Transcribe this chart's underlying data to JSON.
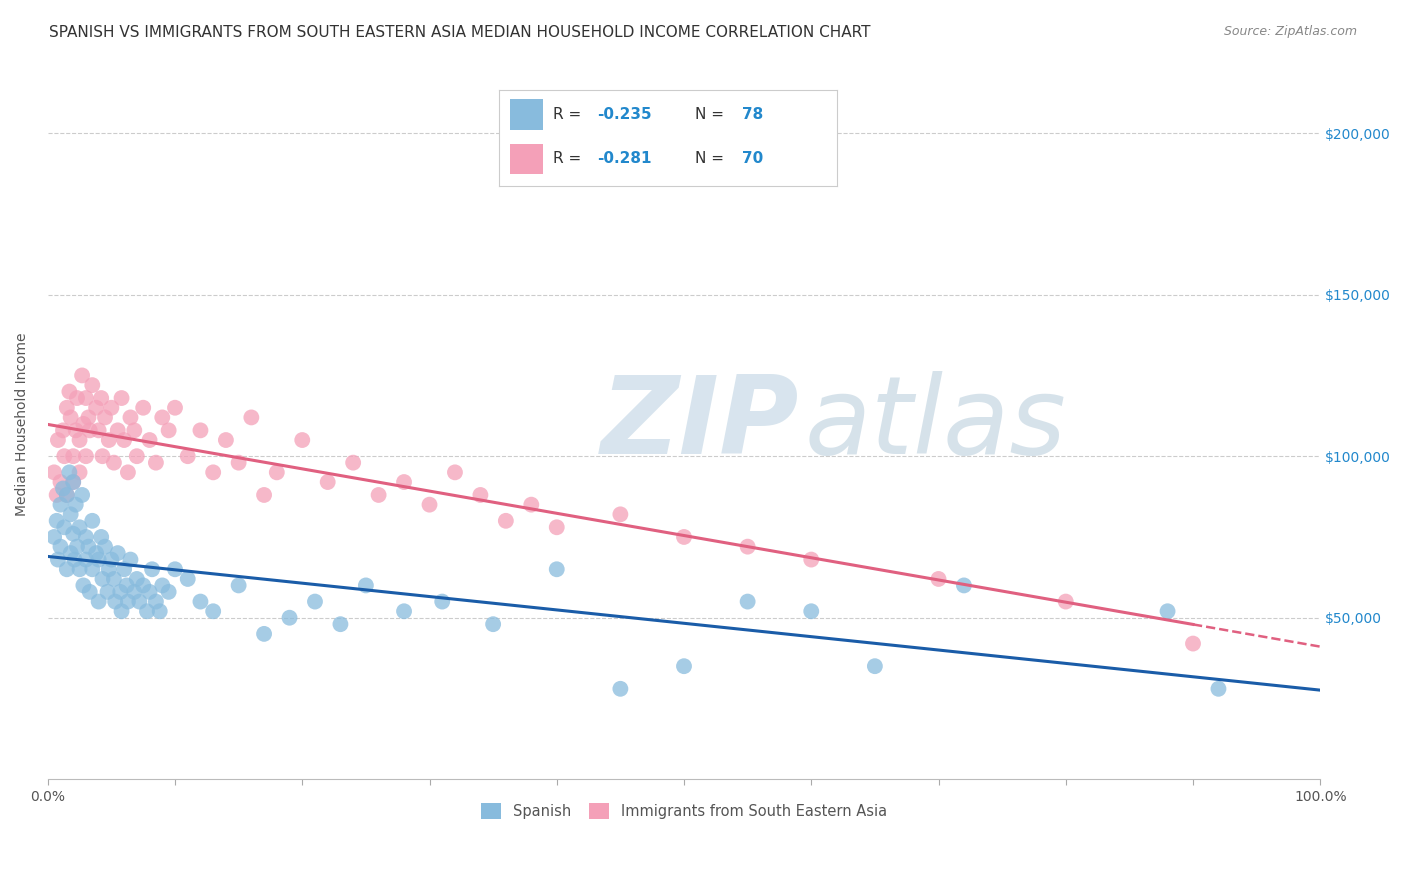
{
  "title": "SPANISH VS IMMIGRANTS FROM SOUTH EASTERN ASIA MEDIAN HOUSEHOLD INCOME CORRELATION CHART",
  "source": "Source: ZipAtlas.com",
  "ylabel": "Median Household Income",
  "xlim": [
    0,
    1.0
  ],
  "ylim": [
    0,
    220000
  ],
  "ytick_labels": [
    "$50,000",
    "$100,000",
    "$150,000",
    "$200,000"
  ],
  "ytick_values": [
    50000,
    100000,
    150000,
    200000
  ],
  "background_color": "#ffffff",
  "legend_R1": "-0.235",
  "legend_N1": "78",
  "legend_R2": "-0.281",
  "legend_N2": "70",
  "legend_label1": "Spanish",
  "legend_label2": "Immigrants from South Eastern Asia",
  "color_blue": "#88bbdd",
  "color_pink": "#f4a0b8",
  "line_color_blue": "#1a5ca8",
  "line_color_pink": "#e06080",
  "title_fontsize": 11,
  "axis_label_fontsize": 10,
  "tick_fontsize": 10,
  "blue_x": [
    0.005,
    0.007,
    0.008,
    0.01,
    0.01,
    0.012,
    0.013,
    0.015,
    0.015,
    0.017,
    0.018,
    0.018,
    0.02,
    0.02,
    0.021,
    0.022,
    0.023,
    0.025,
    0.025,
    0.027,
    0.028,
    0.03,
    0.03,
    0.032,
    0.033,
    0.035,
    0.035,
    0.038,
    0.04,
    0.04,
    0.042,
    0.043,
    0.045,
    0.047,
    0.048,
    0.05,
    0.052,
    0.053,
    0.055,
    0.057,
    0.058,
    0.06,
    0.062,
    0.063,
    0.065,
    0.068,
    0.07,
    0.072,
    0.075,
    0.078,
    0.08,
    0.082,
    0.085,
    0.088,
    0.09,
    0.095,
    0.1,
    0.11,
    0.12,
    0.13,
    0.15,
    0.17,
    0.19,
    0.21,
    0.23,
    0.25,
    0.28,
    0.31,
    0.35,
    0.4,
    0.45,
    0.5,
    0.55,
    0.6,
    0.65,
    0.72,
    0.88,
    0.92
  ],
  "blue_y": [
    75000,
    80000,
    68000,
    85000,
    72000,
    90000,
    78000,
    88000,
    65000,
    95000,
    82000,
    70000,
    92000,
    76000,
    68000,
    85000,
    72000,
    78000,
    65000,
    88000,
    60000,
    75000,
    68000,
    72000,
    58000,
    80000,
    65000,
    70000,
    68000,
    55000,
    75000,
    62000,
    72000,
    58000,
    65000,
    68000,
    62000,
    55000,
    70000,
    58000,
    52000,
    65000,
    60000,
    55000,
    68000,
    58000,
    62000,
    55000,
    60000,
    52000,
    58000,
    65000,
    55000,
    52000,
    60000,
    58000,
    65000,
    62000,
    55000,
    52000,
    60000,
    45000,
    50000,
    55000,
    48000,
    60000,
    52000,
    55000,
    48000,
    65000,
    28000,
    35000,
    55000,
    52000,
    35000,
    60000,
    52000,
    28000
  ],
  "pink_x": [
    0.005,
    0.007,
    0.008,
    0.01,
    0.012,
    0.013,
    0.015,
    0.015,
    0.017,
    0.018,
    0.02,
    0.02,
    0.022,
    0.023,
    0.025,
    0.025,
    0.027,
    0.028,
    0.03,
    0.03,
    0.032,
    0.033,
    0.035,
    0.038,
    0.04,
    0.042,
    0.043,
    0.045,
    0.048,
    0.05,
    0.052,
    0.055,
    0.058,
    0.06,
    0.063,
    0.065,
    0.068,
    0.07,
    0.075,
    0.08,
    0.085,
    0.09,
    0.095,
    0.1,
    0.11,
    0.12,
    0.13,
    0.14,
    0.15,
    0.16,
    0.17,
    0.18,
    0.2,
    0.22,
    0.24,
    0.26,
    0.28,
    0.3,
    0.32,
    0.34,
    0.36,
    0.38,
    0.4,
    0.45,
    0.5,
    0.55,
    0.6,
    0.7,
    0.8,
    0.9
  ],
  "pink_y": [
    95000,
    88000,
    105000,
    92000,
    108000,
    100000,
    115000,
    88000,
    120000,
    112000,
    100000,
    92000,
    108000,
    118000,
    105000,
    95000,
    125000,
    110000,
    118000,
    100000,
    112000,
    108000,
    122000,
    115000,
    108000,
    118000,
    100000,
    112000,
    105000,
    115000,
    98000,
    108000,
    118000,
    105000,
    95000,
    112000,
    108000,
    100000,
    115000,
    105000,
    98000,
    112000,
    108000,
    115000,
    100000,
    108000,
    95000,
    105000,
    98000,
    112000,
    88000,
    95000,
    105000,
    92000,
    98000,
    88000,
    92000,
    85000,
    95000,
    88000,
    80000,
    85000,
    78000,
    82000,
    75000,
    72000,
    68000,
    62000,
    55000,
    42000
  ]
}
